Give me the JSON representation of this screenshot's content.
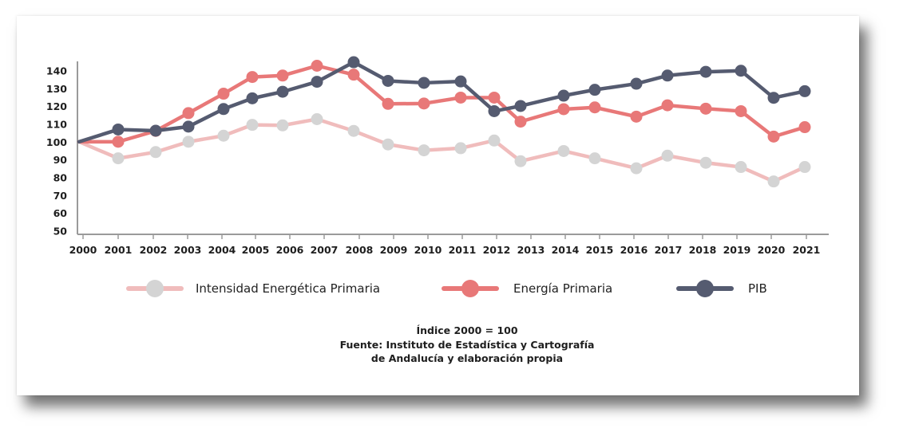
{
  "chart_data": {
    "type": "line",
    "title": "",
    "xlabel": "",
    "ylabel": "",
    "ylim": [
      50,
      146
    ],
    "yticks": [
      50,
      60,
      70,
      80,
      90,
      100,
      110,
      120,
      130,
      140
    ],
    "categories": [
      "2000",
      "2001",
      "2002",
      "2003",
      "2004",
      "2005",
      "2006",
      "2007",
      "2008",
      "2009",
      "2010",
      "2011",
      "2012",
      "2013",
      "2014",
      "2015",
      "2016",
      "2017",
      "2018",
      "2019",
      "2020",
      "2021"
    ],
    "series": [
      {
        "name": "Intensidad Energética Primaria",
        "color": "#f0bcbc",
        "values": [
          100,
          90.7,
          94.2,
          100,
          103.4,
          109.5,
          109.2,
          112.7,
          106.1,
          98.5,
          95.2,
          96.4,
          100.7,
          89.1,
          94.8,
          90.7,
          85.1,
          92.2,
          88.2,
          85.8,
          77.7,
          85.8
        ]
      },
      {
        "name": "Energía Primaria",
        "color": "#e87878",
        "values": [
          100,
          100,
          106.1,
          116.1,
          127,
          136.4,
          137.2,
          142.7,
          137.7,
          121.3,
          121.5,
          124.8,
          124.8,
          111.3,
          118.3,
          119.3,
          114.1,
          120.5,
          118.6,
          117.2,
          102.9,
          108.2
        ]
      },
      {
        "name": "PIB",
        "color": "#555b70",
        "values": [
          100,
          106.9,
          106.2,
          108.5,
          118.4,
          124.4,
          128.1,
          133.7,
          144.7,
          134.2,
          133.1,
          133.9,
          117.2,
          120.1,
          125.9,
          129.2,
          132.6,
          137.2,
          139.3,
          139.9,
          124.7,
          128.4
        ]
      }
    ],
    "legend": "bottom"
  },
  "legend": {
    "items": [
      {
        "label": "Intensidad Energética Primaria",
        "color": "#f0bcbc"
      },
      {
        "label": "Energía Primaria",
        "color": "#e87878"
      },
      {
        "label": "PIB",
        "color": "#555b70"
      }
    ]
  },
  "footnote": {
    "line1": "Índice 2000 = 100",
    "line2": "Fuente: Instituto de Estadística y Cartografía",
    "line3": "de Andalucía y elaboración propia"
  }
}
